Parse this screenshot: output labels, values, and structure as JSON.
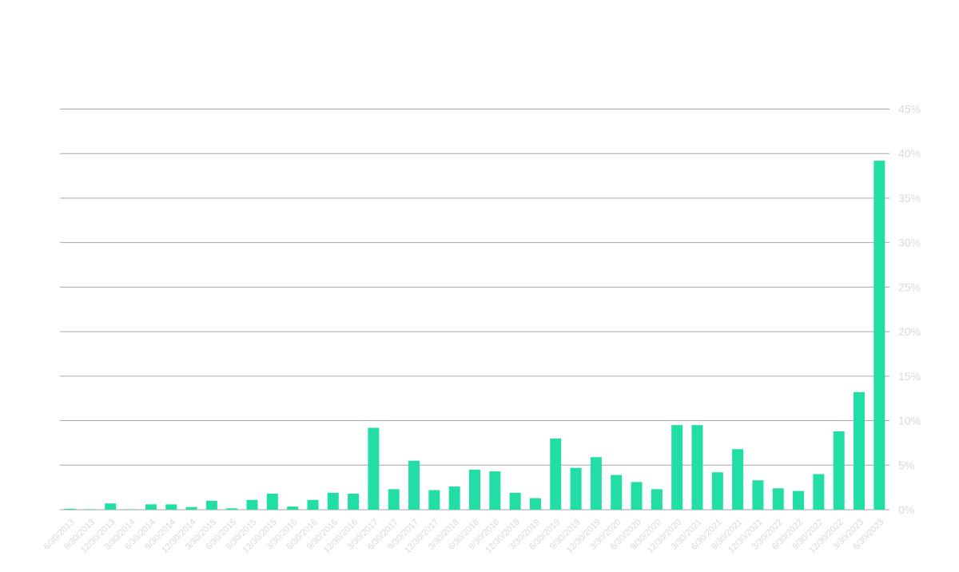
{
  "chart_data": {
    "type": "bar",
    "title": "",
    "xlabel": "",
    "ylabel": "",
    "ylim": [
      0,
      45
    ],
    "yticks": [
      "0%",
      "5%",
      "10%",
      "15%",
      "20%",
      "25%",
      "30%",
      "35%",
      "40%",
      "45%"
    ],
    "ytick_values": [
      0,
      5,
      10,
      15,
      20,
      25,
      30,
      35,
      40,
      45
    ],
    "grid": true,
    "y_axis_side": "right",
    "colors": {
      "bar": "#22DDA6",
      "grid": "#A6A6A6",
      "tick_label": "#D9D9D9"
    },
    "categories": [
      "6/30/2013",
      "9/30/2013",
      "12/30/2013",
      "3/30/2014",
      "6/30/2014",
      "9/30/2014",
      "12/30/2014",
      "3/30/2015",
      "6/30/2015",
      "9/30/2015",
      "12/30/2015",
      "3/30/2016",
      "6/30/2016",
      "9/30/2016",
      "12/30/2016",
      "3/30/2017",
      "6/30/2017",
      "9/30/2017",
      "12/30/2017",
      "3/30/2018",
      "6/30/2018",
      "9/30/2018",
      "12/30/2018",
      "3/30/2019",
      "6/30/2019",
      "9/30/2019",
      "12/30/2019",
      "3/30/2020",
      "6/30/2020",
      "9/30/2020",
      "12/30/2020",
      "3/30/2021",
      "6/30/2021",
      "9/30/2021",
      "12/30/2021",
      "3/30/2022",
      "6/30/2022",
      "9/30/2022",
      "12/30/2022",
      "3/30/2023",
      "6/30/2023"
    ],
    "values": [
      0.1,
      0.05,
      0.7,
      0.05,
      0.6,
      0.6,
      0.3,
      1.0,
      0.15,
      1.1,
      1.8,
      0.35,
      1.1,
      1.9,
      1.8,
      9.2,
      2.3,
      5.5,
      2.2,
      2.6,
      4.5,
      4.3,
      1.9,
      1.3,
      8.0,
      4.7,
      5.9,
      3.9,
      3.1,
      2.3,
      9.5,
      9.5,
      4.2,
      6.8,
      3.3,
      2.4,
      2.1,
      4.0,
      8.8,
      13.2,
      39.2
    ]
  }
}
